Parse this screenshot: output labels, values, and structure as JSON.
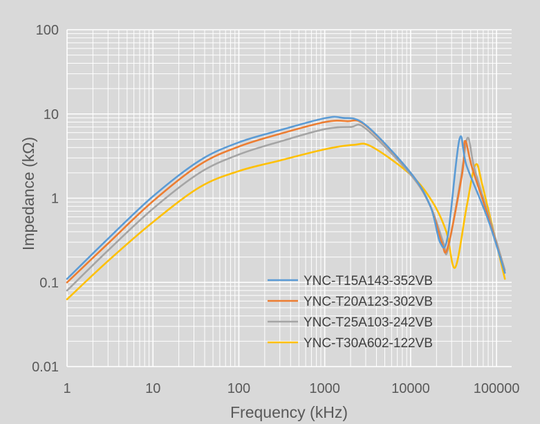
{
  "chart_data": {
    "type": "line",
    "title": "",
    "xlabel": "Frequency (kHz)",
    "ylabel": "Impedance (kΩ)",
    "x_scale": "log",
    "y_scale": "log",
    "xlim": [
      1,
      150000
    ],
    "ylim": [
      0.01,
      100
    ],
    "x_ticks": [
      1,
      10,
      100,
      1000,
      10000,
      100000
    ],
    "x_tick_labels": [
      "1",
      "10",
      "100",
      "1000",
      "10000",
      "100000"
    ],
    "y_ticks": [
      0.01,
      0.1,
      1,
      10,
      100
    ],
    "y_tick_labels": [
      "0.01",
      "0.1",
      "1",
      "10",
      "100"
    ],
    "grid": true,
    "legend_position": "bottom-right",
    "colors": {
      "background": "#d9d9d9",
      "plot_area": "#d9d9d9",
      "gridline": "#ffffff"
    },
    "series": [
      {
        "name": "YNC-T15A143-352VB",
        "color": "#5b9bd5",
        "points": [
          [
            1,
            0.11
          ],
          [
            3,
            0.33
          ],
          [
            10,
            1.05
          ],
          [
            35,
            2.8
          ],
          [
            100,
            4.6
          ],
          [
            300,
            6.4
          ],
          [
            1000,
            8.9
          ],
          [
            1600,
            9.0
          ],
          [
            3000,
            7.4
          ],
          [
            10000,
            2.0
          ],
          [
            17000,
            0.8
          ],
          [
            22000,
            0.3
          ],
          [
            27000,
            0.35
          ],
          [
            37000,
            5.0
          ],
          [
            45000,
            2.4
          ],
          [
            80000,
            0.55
          ],
          [
            125000,
            0.13
          ]
        ]
      },
      {
        "name": "YNC-T20A123-302VB",
        "color": "#ed7d31",
        "points": [
          [
            1,
            0.1
          ],
          [
            3,
            0.29
          ],
          [
            10,
            0.92
          ],
          [
            35,
            2.5
          ],
          [
            100,
            4.1
          ],
          [
            300,
            5.8
          ],
          [
            1000,
            8.0
          ],
          [
            1800,
            8.2
          ],
          [
            3000,
            7.3
          ],
          [
            10000,
            2.0
          ],
          [
            17000,
            0.8
          ],
          [
            23000,
            0.3
          ],
          [
            27000,
            0.26
          ],
          [
            40000,
            2.0
          ],
          [
            43000,
            4.8
          ],
          [
            52000,
            2.3
          ],
          [
            80000,
            0.6
          ],
          [
            125000,
            0.13
          ]
        ]
      },
      {
        "name": "YNC-T25A103-242VB",
        "color": "#a5a5a5",
        "points": [
          [
            1,
            0.08
          ],
          [
            3,
            0.24
          ],
          [
            10,
            0.75
          ],
          [
            35,
            2.0
          ],
          [
            100,
            3.3
          ],
          [
            300,
            4.7
          ],
          [
            1000,
            6.6
          ],
          [
            2000,
            7.0
          ],
          [
            3000,
            6.7
          ],
          [
            10000,
            1.9
          ],
          [
            17000,
            0.8
          ],
          [
            24000,
            0.3
          ],
          [
            27000,
            0.24
          ],
          [
            38000,
            1.6
          ],
          [
            46000,
            5.2
          ],
          [
            55000,
            2.3
          ],
          [
            80000,
            0.65
          ],
          [
            125000,
            0.14
          ]
        ]
      },
      {
        "name": "YNC-T30A602-122VB",
        "color": "#ffc000",
        "points": [
          [
            1,
            0.063
          ],
          [
            3,
            0.18
          ],
          [
            10,
            0.52
          ],
          [
            35,
            1.35
          ],
          [
            100,
            2.1
          ],
          [
            300,
            2.8
          ],
          [
            1000,
            3.8
          ],
          [
            2200,
            4.3
          ],
          [
            3500,
            4.1
          ],
          [
            10000,
            1.9
          ],
          [
            18000,
            0.9
          ],
          [
            26000,
            0.4
          ],
          [
            33000,
            0.15
          ],
          [
            45000,
            0.8
          ],
          [
            57000,
            2.5
          ],
          [
            70000,
            1.3
          ],
          [
            125000,
            0.11
          ]
        ]
      }
    ]
  }
}
